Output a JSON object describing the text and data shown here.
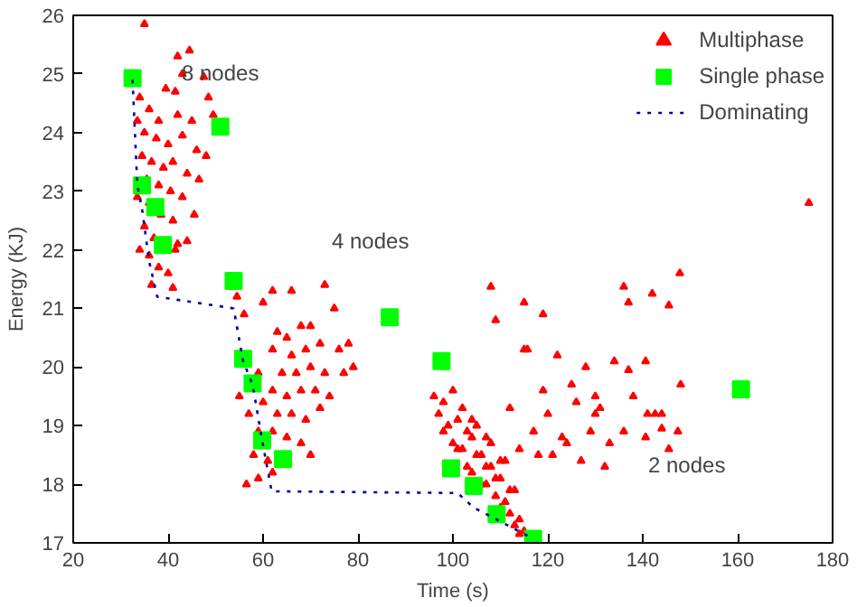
{
  "chart_data": {
    "type": "scatter",
    "xlabel": "Time (s)",
    "ylabel": "Energy (KJ)",
    "xlim": [
      20,
      180
    ],
    "ylim": [
      17,
      26
    ],
    "xticks": [
      20,
      40,
      60,
      80,
      100,
      120,
      140,
      160,
      180
    ],
    "yticks": [
      17,
      18,
      19,
      20,
      21,
      22,
      23,
      24,
      25,
      26
    ],
    "grid": false,
    "legend": "top right",
    "annotations": [
      "8 nodes",
      "4 nodes",
      "2 nodes"
    ],
    "series": [
      {
        "name": "Multiphase",
        "color": "#ff0000",
        "marker": "triangle",
        "x": [
          35,
          42,
          44.5,
          43,
          47.5,
          48.5,
          39.5,
          41.5,
          36,
          38,
          42,
          45,
          49.5,
          35,
          37.5,
          40,
          43,
          46,
          48,
          34.5,
          36.5,
          39,
          41,
          44,
          46.5,
          35.5,
          38,
          40.5,
          43,
          45.5,
          36,
          38.5,
          41,
          35,
          37,
          41.5,
          42,
          44,
          36,
          38,
          40,
          36.5,
          41,
          34,
          33.5,
          34,
          33.5,
          54.5,
          56,
          60,
          62,
          66,
          73,
          75,
          63,
          65,
          68,
          70,
          62,
          66,
          69,
          72,
          76,
          78,
          64,
          67,
          70,
          73,
          77,
          79,
          59,
          62,
          65,
          68,
          71,
          74,
          60,
          63,
          66,
          69,
          72,
          57,
          59,
          62,
          65,
          68,
          58,
          61,
          55,
          56.5,
          59,
          62,
          70,
          108,
          115,
          119,
          109,
          115,
          136,
          137,
          142,
          145.5,
          147.8,
          115.7,
          122,
          128,
          134,
          140.6,
          137,
          119,
          125,
          130,
          112,
          120,
          126,
          131,
          117,
          123,
          129,
          133,
          114,
          121,
          127,
          132,
          118,
          124,
          130,
          136,
          138,
          141,
          142.6,
          144,
          140.6,
          145.5,
          144,
          147.4,
          148,
          96,
          98,
          100,
          102,
          104,
          97,
          99,
          101,
          103,
          105,
          107,
          98,
          100,
          102,
          104,
          106,
          108,
          110,
          101,
          103,
          105,
          107,
          109,
          111,
          104,
          106,
          108,
          110,
          112,
          107,
          109,
          111,
          113,
          110,
          112,
          114,
          113,
          115,
          114,
          175
        ],
        "values": [
          25.85,
          25.3,
          25.4,
          25.0,
          24.95,
          24.6,
          24.75,
          24.7,
          24.4,
          24.2,
          24.3,
          24.2,
          24.3,
          24.0,
          23.9,
          23.8,
          23.95,
          23.7,
          23.6,
          23.6,
          23.5,
          23.4,
          23.5,
          23.3,
          23.2,
          23.2,
          23.1,
          23.0,
          22.9,
          22.6,
          22.8,
          22.6,
          22.5,
          22.4,
          22.2,
          22.0,
          22.1,
          22.15,
          21.9,
          21.7,
          21.6,
          21.4,
          21.35,
          22.0,
          22.9,
          24.6,
          24.2,
          21.2,
          20.9,
          21.1,
          21.3,
          21.3,
          21.4,
          21.0,
          20.6,
          20.5,
          20.7,
          20.7,
          20.3,
          20.2,
          20.3,
          20.4,
          20.3,
          20.4,
          19.9,
          19.9,
          20.0,
          19.9,
          19.9,
          20.0,
          19.9,
          19.6,
          19.5,
          19.6,
          19.6,
          19.5,
          19.4,
          19.2,
          19.2,
          19.1,
          19.3,
          19.2,
          18.9,
          18.9,
          18.8,
          18.7,
          18.5,
          18.4,
          19.5,
          18.0,
          18.1,
          18.2,
          18.5,
          21.37,
          21.1,
          20.9,
          20.8,
          20.3,
          21.37,
          21.1,
          21.25,
          21.05,
          21.6,
          20.3,
          20.2,
          20.0,
          20.1,
          20.1,
          19.95,
          19.6,
          19.7,
          19.5,
          19.3,
          19.2,
          19.4,
          19.3,
          18.9,
          18.8,
          18.9,
          18.7,
          18.6,
          18.5,
          18.4,
          18.3,
          18.5,
          18.7,
          19.2,
          18.9,
          19.5,
          19.2,
          19.2,
          18.95,
          18.8,
          18.6,
          19.2,
          18.9,
          19.7,
          19.5,
          19.4,
          19.6,
          19.3,
          19.1,
          19.2,
          19.0,
          19.1,
          18.9,
          19.0,
          18.8,
          18.9,
          18.7,
          18.6,
          18.8,
          18.5,
          18.7,
          18.4,
          18.6,
          18.3,
          18.5,
          18.3,
          18.1,
          18.4,
          18.2,
          18.0,
          18.3,
          18.1,
          17.9,
          18.0,
          17.8,
          17.7,
          17.9,
          17.6,
          17.5,
          17.4,
          17.3,
          17.2,
          17.15,
          22.8
        ]
      },
      {
        "name": "Single phase",
        "color": "#00ff00",
        "marker": "square",
        "x": [
          32.5,
          51,
          34.5,
          37.3,
          38.9,
          53.8,
          86.7,
          97.6,
          55.8,
          57.8,
          59.8,
          64.2,
          99.6,
          104.4,
          160.7,
          109.2,
          116.9
        ],
        "values": [
          24.93,
          24.1,
          23.1,
          22.73,
          22.08,
          21.47,
          20.85,
          20.1,
          20.14,
          19.72,
          18.75,
          18.43,
          18.27,
          17.97,
          19.62,
          17.49,
          17.07
        ]
      },
      {
        "name": "Dominating",
        "color": "#0000a0",
        "type": "line",
        "line_style": "dotted",
        "x": [
          32.5,
          33.5,
          34.5,
          36,
          37.7,
          53.8,
          55.8,
          57.8,
          59.8,
          61.8,
          101,
          104.4,
          109.2,
          116.9
        ],
        "values": [
          24.9,
          23.1,
          22.7,
          21.8,
          21.2,
          21.0,
          20.1,
          19.7,
          18.75,
          17.88,
          17.85,
          17.6,
          17.4,
          17.07
        ]
      }
    ]
  }
}
